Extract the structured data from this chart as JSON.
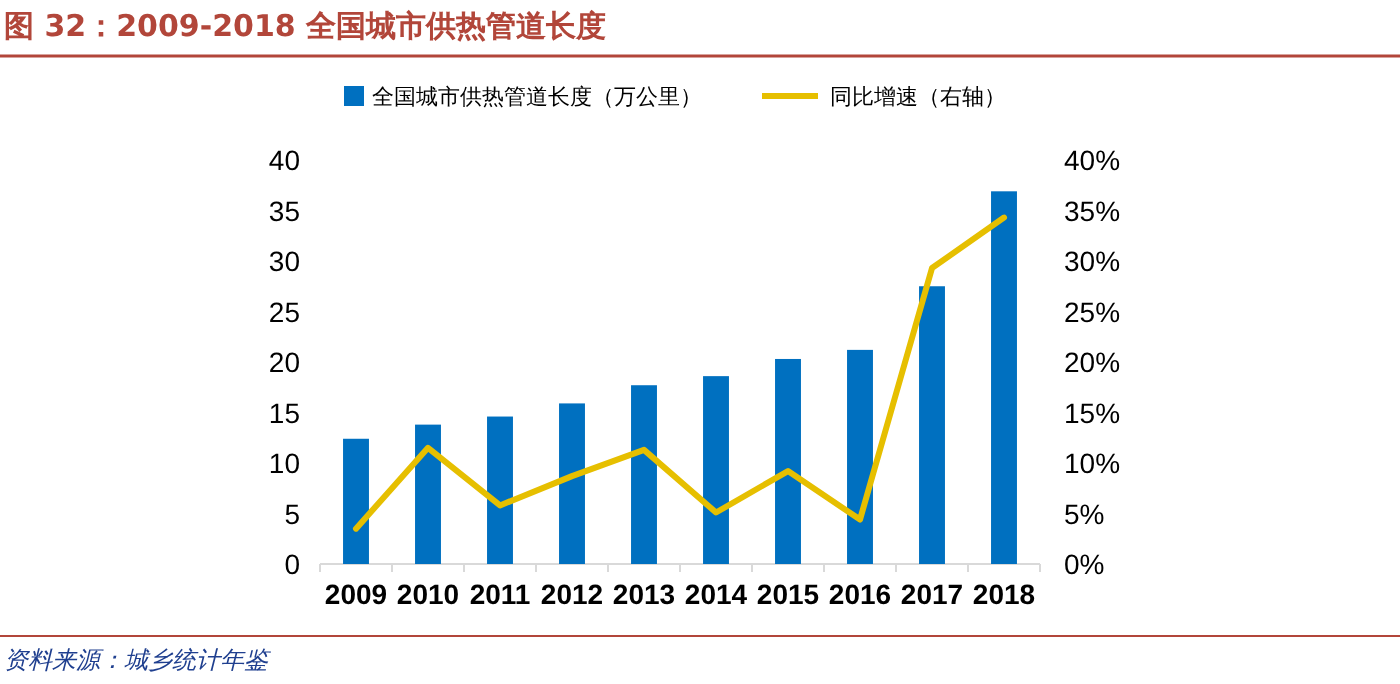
{
  "chart_data": {
    "type": "bar",
    "title": "图 32：2009-2018 全国城市供热管道长度",
    "categories": [
      "2009",
      "2010",
      "2011",
      "2012",
      "2013",
      "2014",
      "2015",
      "2016",
      "2017",
      "2018"
    ],
    "series": [
      {
        "name": "全国城市供热管道长度（万公里）",
        "color": "#0070c0",
        "values": [
          12.4,
          13.8,
          14.6,
          15.9,
          17.7,
          18.6,
          20.3,
          21.2,
          27.5,
          36.9
        ]
      },
      {
        "name": "同比增速（右轴）",
        "type": "line",
        "axis": "y2",
        "color": "#e6bf00",
        "values": [
          0.035,
          0.115,
          0.058,
          0.087,
          0.113,
          0.051,
          0.092,
          0.044,
          0.293,
          0.343
        ]
      }
    ],
    "ylim": [
      0,
      40
    ],
    "yticks": [
      0,
      5,
      10,
      15,
      20,
      25,
      30,
      35,
      40
    ],
    "y2lim": [
      0,
      0.4
    ],
    "y2ticks": [
      {
        "value": 0,
        "label": "0%"
      },
      {
        "value": 0.05,
        "label": "5%"
      },
      {
        "value": 0.1,
        "label": "10%"
      },
      {
        "value": 0.15,
        "label": "15%"
      },
      {
        "value": 0.2,
        "label": "20%"
      },
      {
        "value": 0.25,
        "label": "25%"
      },
      {
        "value": 0.3,
        "label": "30%"
      },
      {
        "value": 0.35,
        "label": "35%"
      },
      {
        "value": 0.4,
        "label": "40%"
      }
    ],
    "legend": "top",
    "annotations": [
      "资料来源：城乡统计年鉴"
    ]
  }
}
